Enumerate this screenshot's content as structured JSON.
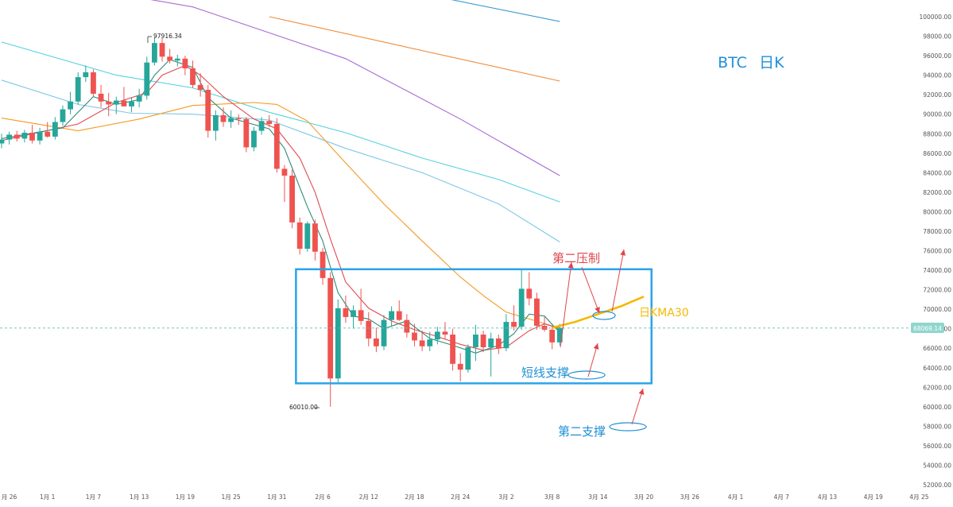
{
  "chart_data": {
    "type": "candlestick",
    "title": "BTC 日K",
    "title_parts": [
      "BTC",
      "日K"
    ],
    "y_ticks": [
      100000,
      98000,
      96000,
      94000,
      92000,
      90000,
      88000,
      86000,
      84000,
      82000,
      80000,
      78000,
      76000,
      74000,
      72000,
      70000,
      68000,
      66000,
      64000,
      62000,
      60000,
      58000,
      56000,
      54000,
      52000
    ],
    "y_tick_labels": [
      "100000.00",
      "98000.00",
      "96000.00",
      "94000.00",
      "92000.00",
      "90000.00",
      "88000.00",
      "86000.00",
      "84000.00",
      "82000.00",
      "80000.00",
      "78000.00",
      "76000.00",
      "74000.00",
      "72000.00",
      "70000.00",
      "68000.00",
      "66000.00",
      "64000.00",
      "62000.00",
      "60000.00",
      "58000.00",
      "56000.00",
      "54000.00",
      "52000.00"
    ],
    "x_ticks": [
      {
        "day": -4,
        "label": "月 26"
      },
      {
        "day": 1,
        "label": "1月 1"
      },
      {
        "day": 7,
        "label": "1月 7"
      },
      {
        "day": 13,
        "label": "1月 13"
      },
      {
        "day": 19,
        "label": "1月 19"
      },
      {
        "day": 25,
        "label": "1月 25"
      },
      {
        "day": 31,
        "label": "1月 31"
      },
      {
        "day": 37,
        "label": "2月 6"
      },
      {
        "day": 43,
        "label": "2月 12"
      },
      {
        "day": 49,
        "label": "2月 18"
      },
      {
        "day": 55,
        "label": "2月 24"
      },
      {
        "day": 61,
        "label": "3月 2"
      },
      {
        "day": 67,
        "label": "3月 8"
      },
      {
        "day": 73,
        "label": "3月 14"
      },
      {
        "day": 79,
        "label": "3月 20"
      },
      {
        "day": 85,
        "label": "3月 26"
      },
      {
        "day": 91,
        "label": "4月 1"
      },
      {
        "day": 97,
        "label": "4月 7"
      },
      {
        "day": 103,
        "label": "4月 13"
      },
      {
        "day": 109,
        "label": "4月 19"
      },
      {
        "day": 115,
        "label": "4月 25"
      }
    ],
    "candles": [
      {
        "day": -5,
        "o": 87000,
        "h": 88000,
        "l": 86500,
        "c": 87400
      },
      {
        "day": -4,
        "o": 87400,
        "h": 88200,
        "l": 86900,
        "c": 87900
      },
      {
        "day": -3,
        "o": 87900,
        "h": 88300,
        "l": 87200,
        "c": 87500
      },
      {
        "day": -2,
        "o": 87500,
        "h": 88400,
        "l": 87100,
        "c": 88100
      },
      {
        "day": -1,
        "o": 88100,
        "h": 88900,
        "l": 87000,
        "c": 87300
      },
      {
        "day": 0,
        "o": 87300,
        "h": 88600,
        "l": 86900,
        "c": 88200
      },
      {
        "day": 1,
        "o": 88200,
        "h": 89200,
        "l": 87600,
        "c": 87700
      },
      {
        "day": 2,
        "o": 87700,
        "h": 89700,
        "l": 87400,
        "c": 89200
      },
      {
        "day": 3,
        "o": 89200,
        "h": 90900,
        "l": 88800,
        "c": 90500
      },
      {
        "day": 4,
        "o": 90500,
        "h": 92300,
        "l": 90000,
        "c": 91300
      },
      {
        "day": 5,
        "o": 91300,
        "h": 94300,
        "l": 91000,
        "c": 93800
      },
      {
        "day": 6,
        "o": 93800,
        "h": 95000,
        "l": 93300,
        "c": 94300
      },
      {
        "day": 7,
        "o": 94300,
        "h": 94600,
        "l": 91800,
        "c": 92100
      },
      {
        "day": 8,
        "o": 92100,
        "h": 93000,
        "l": 90700,
        "c": 91300
      },
      {
        "day": 9,
        "o": 91300,
        "h": 92200,
        "l": 89800,
        "c": 91000
      },
      {
        "day": 10,
        "o": 91000,
        "h": 91800,
        "l": 90000,
        "c": 91400
      },
      {
        "day": 11,
        "o": 91400,
        "h": 92800,
        "l": 91000,
        "c": 90800
      },
      {
        "day": 12,
        "o": 90800,
        "h": 91700,
        "l": 90200,
        "c": 91300
      },
      {
        "day": 13,
        "o": 91300,
        "h": 92600,
        "l": 90700,
        "c": 91900
      },
      {
        "day": 14,
        "o": 91900,
        "h": 95900,
        "l": 91500,
        "c": 95300
      },
      {
        "day": 15,
        "o": 95300,
        "h": 97900,
        "l": 95000,
        "c": 97300
      },
      {
        "day": 16,
        "o": 97300,
        "h": 97800,
        "l": 95400,
        "c": 95900
      },
      {
        "day": 17,
        "o": 95900,
        "h": 96700,
        "l": 95200,
        "c": 95500
      },
      {
        "day": 18,
        "o": 95500,
        "h": 96100,
        "l": 94900,
        "c": 95700
      },
      {
        "day": 19,
        "o": 95700,
        "h": 96000,
        "l": 94000,
        "c": 94700
      },
      {
        "day": 20,
        "o": 94700,
        "h": 95500,
        "l": 92700,
        "c": 93000
      },
      {
        "day": 21,
        "o": 93000,
        "h": 94200,
        "l": 91800,
        "c": 92500
      },
      {
        "day": 22,
        "o": 92500,
        "h": 93000,
        "l": 87600,
        "c": 88300
      },
      {
        "day": 23,
        "o": 88300,
        "h": 90400,
        "l": 87300,
        "c": 89900
      },
      {
        "day": 24,
        "o": 89900,
        "h": 90700,
        "l": 88700,
        "c": 89200
      },
      {
        "day": 25,
        "o": 89200,
        "h": 90400,
        "l": 88600,
        "c": 89600
      },
      {
        "day": 26,
        "o": 89600,
        "h": 90000,
        "l": 88900,
        "c": 89500
      },
      {
        "day": 27,
        "o": 89500,
        "h": 89700,
        "l": 86100,
        "c": 86600
      },
      {
        "day": 28,
        "o": 86600,
        "h": 88700,
        "l": 86200,
        "c": 88300
      },
      {
        "day": 29,
        "o": 88300,
        "h": 89700,
        "l": 87900,
        "c": 89300
      },
      {
        "day": 30,
        "o": 89300,
        "h": 89900,
        "l": 88700,
        "c": 89000
      },
      {
        "day": 31,
        "o": 89000,
        "h": 89600,
        "l": 84000,
        "c": 84400
      },
      {
        "day": 32,
        "o": 84400,
        "h": 84800,
        "l": 81000,
        "c": 83700
      },
      {
        "day": 33,
        "o": 83700,
        "h": 84300,
        "l": 78300,
        "c": 78900
      },
      {
        "day": 34,
        "o": 78900,
        "h": 79400,
        "l": 75600,
        "c": 76200
      },
      {
        "day": 35,
        "o": 76200,
        "h": 79000,
        "l": 75900,
        "c": 78800
      },
      {
        "day": 36,
        "o": 78800,
        "h": 79200,
        "l": 75000,
        "c": 75900
      },
      {
        "day": 37,
        "o": 75900,
        "h": 76300,
        "l": 72500,
        "c": 73200
      },
      {
        "day": 38,
        "o": 73200,
        "h": 73800,
        "l": 60010,
        "c": 62900
      },
      {
        "day": 39,
        "o": 62900,
        "h": 71000,
        "l": 62500,
        "c": 70100
      },
      {
        "day": 40,
        "o": 70100,
        "h": 71400,
        "l": 68600,
        "c": 69200
      },
      {
        "day": 41,
        "o": 69200,
        "h": 70400,
        "l": 68000,
        "c": 69900
      },
      {
        "day": 42,
        "o": 69900,
        "h": 72100,
        "l": 68400,
        "c": 68800
      },
      {
        "day": 43,
        "o": 68800,
        "h": 69700,
        "l": 66200,
        "c": 67000
      },
      {
        "day": 44,
        "o": 67000,
        "h": 68100,
        "l": 65600,
        "c": 66200
      },
      {
        "day": 45,
        "o": 66200,
        "h": 69400,
        "l": 65800,
        "c": 68900
      },
      {
        "day": 46,
        "o": 68900,
        "h": 70300,
        "l": 68300,
        "c": 69800
      },
      {
        "day": 47,
        "o": 69800,
        "h": 70900,
        "l": 68800,
        "c": 68900
      },
      {
        "day": 48,
        "o": 68900,
        "h": 69500,
        "l": 67100,
        "c": 67600
      },
      {
        "day": 49,
        "o": 67600,
        "h": 68500,
        "l": 66200,
        "c": 66800
      },
      {
        "day": 50,
        "o": 66800,
        "h": 67800,
        "l": 65700,
        "c": 66200
      },
      {
        "day": 51,
        "o": 66200,
        "h": 67700,
        "l": 65700,
        "c": 66900
      },
      {
        "day": 52,
        "o": 66900,
        "h": 68200,
        "l": 66400,
        "c": 67700
      },
      {
        "day": 53,
        "o": 67700,
        "h": 68700,
        "l": 66900,
        "c": 67400
      },
      {
        "day": 54,
        "o": 67400,
        "h": 68000,
        "l": 63700,
        "c": 64400
      },
      {
        "day": 55,
        "o": 64400,
        "h": 65500,
        "l": 62600,
        "c": 63800
      },
      {
        "day": 56,
        "o": 63800,
        "h": 66400,
        "l": 63500,
        "c": 66100
      },
      {
        "day": 57,
        "o": 66100,
        "h": 68400,
        "l": 64700,
        "c": 67400
      },
      {
        "day": 58,
        "o": 67400,
        "h": 67800,
        "l": 65600,
        "c": 66100
      },
      {
        "day": 59,
        "o": 66100,
        "h": 67600,
        "l": 63100,
        "c": 67000
      },
      {
        "day": 60,
        "o": 67000,
        "h": 67400,
        "l": 65400,
        "c": 66000
      },
      {
        "day": 61,
        "o": 66000,
        "h": 69500,
        "l": 65700,
        "c": 68700
      },
      {
        "day": 62,
        "o": 68700,
        "h": 70400,
        "l": 67800,
        "c": 68200
      },
      {
        "day": 63,
        "o": 68200,
        "h": 74000,
        "l": 67900,
        "c": 72100
      },
      {
        "day": 64,
        "o": 72100,
        "h": 73800,
        "l": 70400,
        "c": 71100
      },
      {
        "day": 65,
        "o": 71100,
        "h": 71700,
        "l": 67900,
        "c": 68300
      },
      {
        "day": 66,
        "o": 68300,
        "h": 69200,
        "l": 67700,
        "c": 67900
      },
      {
        "day": 67,
        "o": 67900,
        "h": 68200,
        "l": 65900,
        "c": 66600
      },
      {
        "day": 68,
        "o": 66600,
        "h": 68500,
        "l": 66300,
        "c": 68100
      }
    ],
    "ma_lines": [
      {
        "color": "#3a9bd1",
        "points": [
          [
            15,
            107900
          ],
          [
            68,
            99500
          ]
        ]
      },
      {
        "color": "#f08b3a",
        "points": [
          [
            30,
            100000
          ],
          [
            68,
            93400
          ]
        ]
      },
      {
        "color": "#a66bd5",
        "points": [
          [
            -2,
            104000
          ],
          [
            20,
            101000
          ],
          [
            40,
            95700
          ],
          [
            55,
            89500
          ],
          [
            68,
            83700
          ]
        ]
      },
      {
        "color": "#54d1e0",
        "points": [
          [
            -5,
            97400
          ],
          [
            10,
            94000
          ],
          [
            20,
            92700
          ],
          [
            30,
            90200
          ],
          [
            40,
            88100
          ],
          [
            50,
            85500
          ],
          [
            60,
            83300
          ],
          [
            68,
            81000
          ]
        ]
      },
      {
        "color": "#7ec8e6",
        "points": [
          [
            -5,
            93500
          ],
          [
            5,
            91000
          ],
          [
            12,
            90100
          ],
          [
            20,
            90000
          ],
          [
            30,
            89400
          ],
          [
            40,
            86500
          ],
          [
            50,
            84000
          ],
          [
            60,
            80800
          ],
          [
            68,
            76900
          ]
        ]
      },
      {
        "color": "#f59a23",
        "points": [
          [
            -5,
            89600
          ],
          [
            5,
            88300
          ],
          [
            13,
            89500
          ],
          [
            20,
            90900
          ],
          [
            28,
            91200
          ],
          [
            31,
            91000
          ],
          [
            35,
            89300
          ],
          [
            40,
            85000
          ],
          [
            45,
            80800
          ],
          [
            50,
            77000
          ],
          [
            55,
            73300
          ],
          [
            58,
            71400
          ],
          [
            61,
            69700
          ],
          [
            64,
            69000
          ],
          [
            67,
            68300
          ],
          [
            68,
            68100
          ]
        ]
      },
      {
        "color": "#e04b50",
        "points": [
          [
            -5,
            87300
          ],
          [
            5,
            89000
          ],
          [
            10,
            91200
          ],
          [
            14,
            92200
          ],
          [
            16,
            94000
          ],
          [
            19,
            95000
          ],
          [
            21,
            94000
          ],
          [
            24,
            91800
          ],
          [
            28,
            89500
          ],
          [
            31,
            88500
          ],
          [
            34,
            85500
          ],
          [
            36,
            82000
          ],
          [
            38,
            77200
          ],
          [
            40,
            72800
          ],
          [
            43,
            70100
          ],
          [
            46,
            68800
          ],
          [
            49,
            67900
          ],
          [
            52,
            67200
          ],
          [
            55,
            66400
          ],
          [
            58,
            65800
          ],
          [
            61,
            66100
          ],
          [
            64,
            67800
          ],
          [
            66,
            68500
          ],
          [
            68,
            68000
          ]
        ]
      },
      {
        "color": "#2e8b77",
        "points": [
          [
            -5,
            87500
          ],
          [
            3,
            88600
          ],
          [
            7,
            91800
          ],
          [
            10,
            91000
          ],
          [
            13,
            91500
          ],
          [
            15,
            94000
          ],
          [
            17,
            95600
          ],
          [
            20,
            94800
          ],
          [
            22,
            91700
          ],
          [
            25,
            89600
          ],
          [
            30,
            88500
          ],
          [
            32,
            86500
          ],
          [
            35,
            80500
          ],
          [
            37,
            77000
          ],
          [
            39,
            71700
          ],
          [
            41,
            69300
          ],
          [
            43,
            69000
          ],
          [
            45,
            68000
          ],
          [
            48,
            68800
          ],
          [
            51,
            67000
          ],
          [
            54,
            66300
          ],
          [
            57,
            65500
          ],
          [
            60,
            66300
          ],
          [
            62,
            67500
          ],
          [
            64,
            69500
          ],
          [
            66,
            69300
          ],
          [
            68,
            67600
          ]
        ]
      }
    ],
    "ma30_projection": [
      [
        67,
        68100
      ],
      [
        70,
        68700
      ],
      [
        73,
        69500
      ],
      [
        76,
        70300
      ],
      [
        79,
        71300
      ]
    ],
    "current_price": 68069.14,
    "current_price_label": "68069.14",
    "high_label": "97916.34",
    "low_label": "60010.00",
    "range_box": {
      "day_from": 33.5,
      "day_to": 80,
      "top": 74100,
      "bottom": 62400
    },
    "annotations": {
      "resist_label": "第二压制",
      "short_support_label": "短线支撑",
      "second_support_label": "第二支撑",
      "ma30_label": "日KMA30"
    },
    "colors": {
      "up": "#26a69a",
      "down": "#ef5350",
      "box": "#2aa3e8",
      "note_red": "#e0454a",
      "note_blue": "#1f8fd6",
      "ma30": "#f5b800",
      "title": "#1f8fd6"
    }
  }
}
